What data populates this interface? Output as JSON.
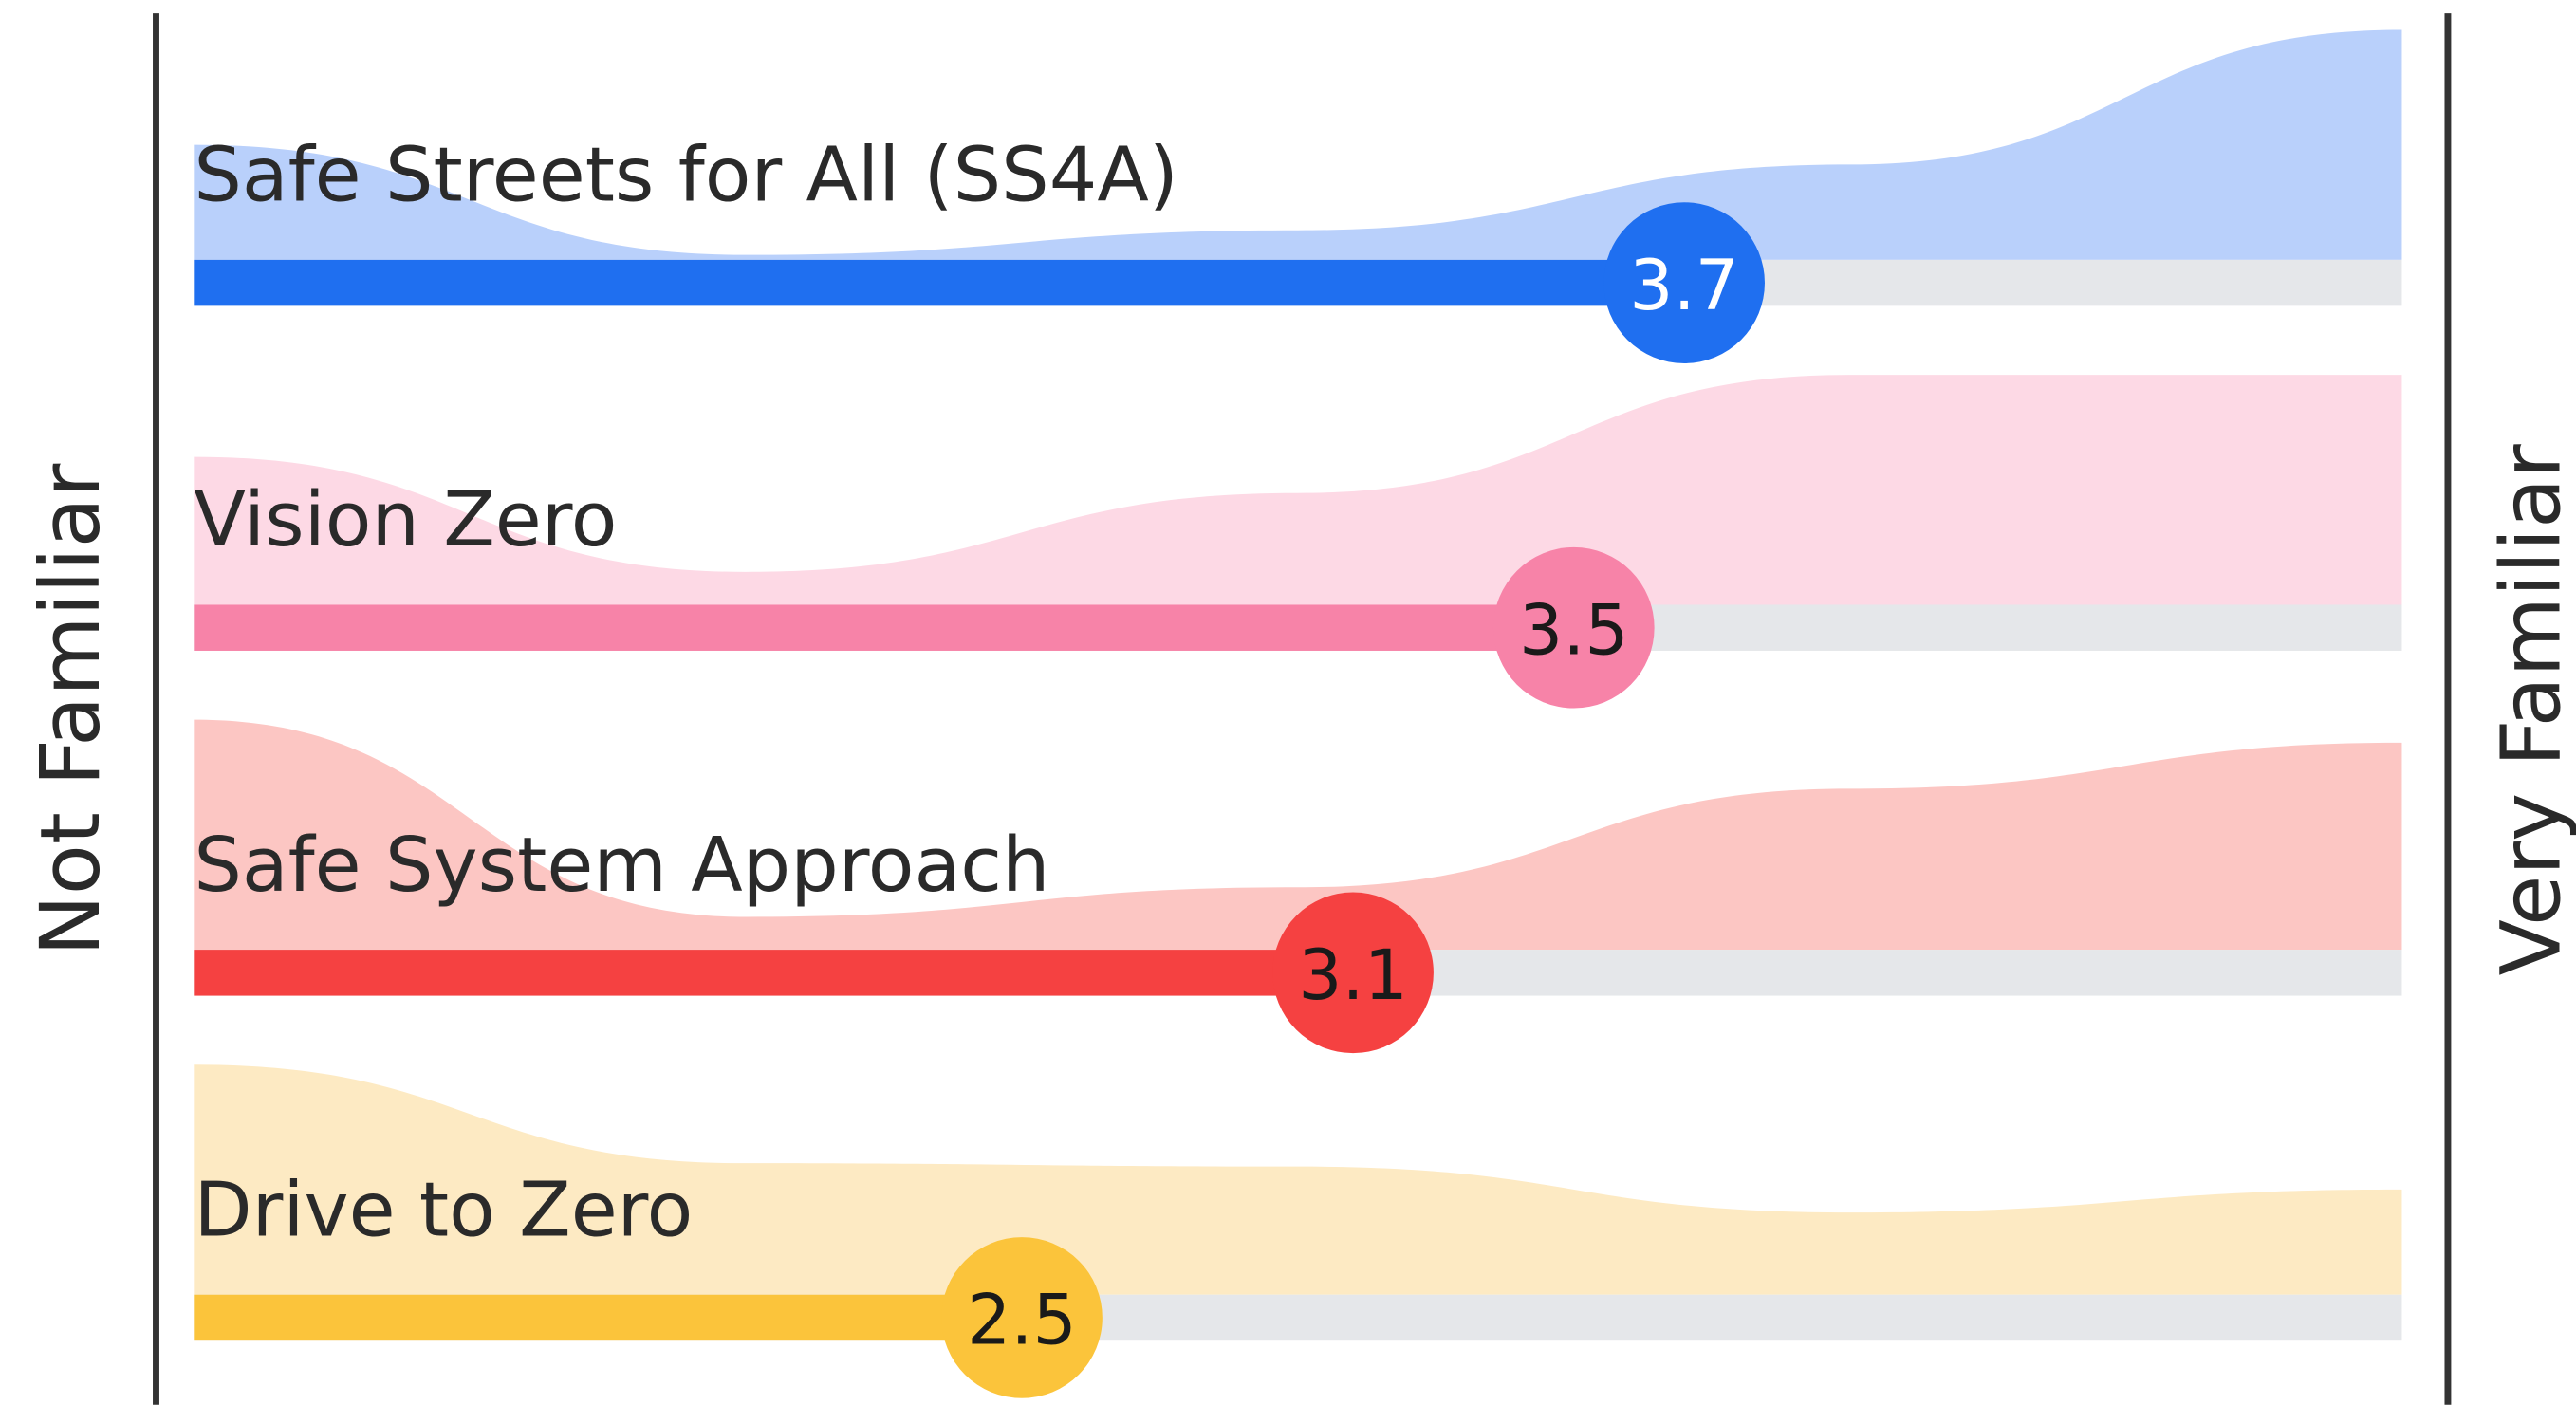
{
  "chart_data": {
    "type": "bar",
    "categories": [
      "Safe Streets for All (SS4A)",
      "Vision Zero",
      "Safe System Approach",
      "Drive to Zero"
    ],
    "series": [
      {
        "values": [
          3.7,
          3.5,
          3.1,
          2.5
        ]
      }
    ],
    "colors": [
      "#1f6ff0",
      "#f783a8",
      "#f54141",
      "#fbc43b"
    ],
    "area_colors": [
      "#b9d0fb",
      "#fdd9e5",
      "#fcc6c3",
      "#fdeac3"
    ],
    "xlim": [
      1,
      5
    ],
    "xlabel_left": "Not Familiar",
    "xlabel_right": "Very Familiar",
    "density_x": [
      1,
      2,
      3,
      4,
      5
    ],
    "density": [
      [
        70,
        3,
        18,
        58,
        140
      ],
      [
        90,
        20,
        68,
        140,
        140
      ],
      [
        140,
        20,
        38,
        98,
        126
      ],
      [
        140,
        80,
        78,
        50,
        64
      ]
    ]
  }
}
